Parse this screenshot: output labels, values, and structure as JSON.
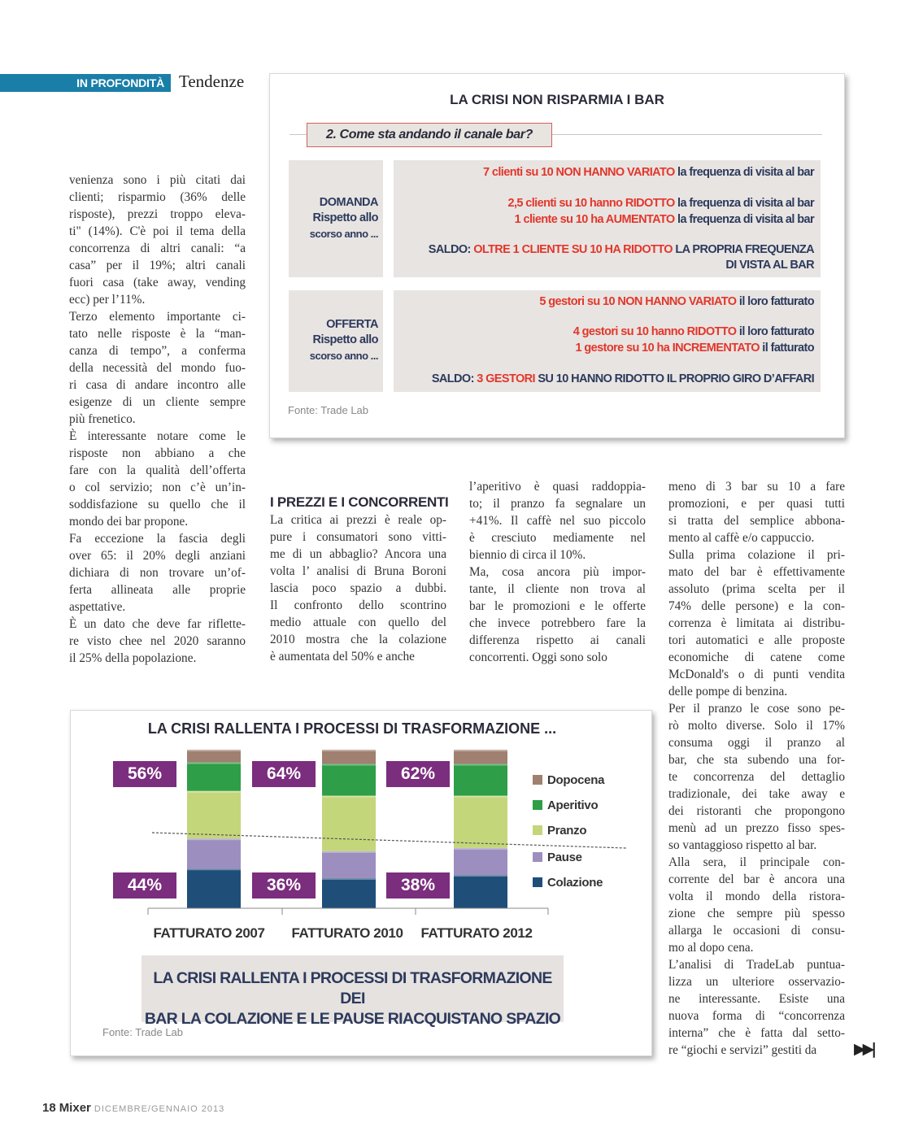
{
  "header": {
    "section_tag": "IN PROFONDITÀ",
    "section_name": "Tendenze"
  },
  "columns": [
    {
      "paragraphs": [
        [
          "venienza sono i più citati dai",
          "clienti; risparmio (36% delle",
          "risposte), prezzi troppo eleva-",
          "ti\" (14%).  C'è poi il tema della",
          "concorrenza di altri canali: “a",
          "casa” per il 19%; altri canali",
          "fuori casa (take away, vending",
          "ecc) per l’11%."
        ],
        [
          "Terzo elemento importante ci-",
          "tato nelle risposte è la “man-",
          "canza di tempo”, a conferma",
          "della necessità del mondo fuo-",
          "ri casa di andare incontro alle",
          "esigenze di un cliente sempre",
          "più frenetico."
        ],
        [
          "È interessante notare come le",
          "risposte non abbiano a che",
          "fare con la qualità dell’offerta",
          "o col servizio; non c’è un’in-",
          "soddisfazione su quello che il",
          "mondo dei bar propone."
        ],
        [
          "Fa eccezione la fascia degli",
          "over 65: il 20% degli anziani",
          "dichiara di non trovare un’of-",
          "ferta allineata alle proprie",
          "aspettative."
        ],
        [
          "È un dato che deve far riflette-",
          "re visto chee nel 2020 saranno",
          "il 25% della popolazione."
        ]
      ]
    },
    {
      "heading": "I PREZZI E I CONCORRENTI",
      "paragraphs": [
        [
          "La critica ai prezzi è reale op-",
          "pure i consumatori sono vitti-",
          "me di un abbaglio? Ancora una",
          "volta l’ analisi di Bruna Boroni",
          "lascia poco spazio a dubbi.",
          "Il confronto dello scontrino",
          "medio attuale con quello del",
          "2010 mostra che la colazione",
          "è aumentata del 50% e anche"
        ]
      ]
    },
    {
      "paragraphs": [
        [
          "l’aperitivo è quasi raddoppia-",
          "to; il pranzo fa segnalare un",
          "+41%. Il caffè nel suo piccolo",
          "è cresciuto mediamente nel",
          "biennio di circa il 10%."
        ],
        [
          "Ma, cosa ancora più impor-",
          "tante, il cliente non trova al",
          "bar le promozioni e le offerte",
          "che invece potrebbero fare la",
          "differenza rispetto ai canali",
          "concorrenti. Oggi sono solo"
        ]
      ]
    },
    {
      "paragraphs": [
        [
          "meno di 3 bar su 10 a fare",
          "promozioni, e per quasi tutti",
          "si tratta del semplice abbona-",
          "mento al caffè e/o cappuccio."
        ],
        [
          "Sulla prima colazione il pri-",
          "mato del bar è effettivamente",
          "assoluto (prima scelta per il",
          "74% delle persone) e la con-",
          "correnza è limitata ai distribu-",
          "tori automatici e alle proposte",
          "economiche di catene come",
          "McDonald's o di punti vendita",
          "delle pompe di benzina."
        ],
        [
          "Per il pranzo le cose sono pe-",
          "rò molto diverse. Solo il 17%",
          "consuma oggi il pranzo al",
          "bar, che sta subendo una for-",
          "te concorrenza del dettaglio",
          "tradizionale, dei take away e",
          "dei ristoranti che propongono",
          "menù ad un prezzo fisso spes-",
          "so vantaggioso rispetto al bar."
        ],
        [
          "Alla sera, il principale con-",
          "corrente del bar è ancora una",
          "volta il mondo della ristora-",
          "zione che sempre più spesso",
          "allarga le occasioni di consu-",
          "mo al dopo cena."
        ],
        [
          "L’analisi di TradeLab puntua-",
          "lizza un ulteriore osservazio-",
          "ne interessante. Esiste una",
          "nuova forma di “concorrenza",
          "interna” che è fatta dal setto-",
          "re “giochi e servizi” gestiti da"
        ]
      ]
    }
  ],
  "infographic": {
    "title": "LA CRISI NON RISPARMIA I BAR",
    "question": "2. Come sta andando il canale bar?",
    "rows": [
      {
        "label": [
          "DOMANDA",
          "Rispetto allo",
          "scorso anno ..."
        ],
        "lines": [
          {
            "red": "7 clienti su 10 NON HANNO VARIATO",
            "navy": " la frequenza di visita al bar"
          },
          {
            "red": "2,5 clienti su 10 hanno RIDOTTO",
            "navy": " la frequenza di visita al bar"
          },
          {
            "red": "1 cliente su 10 ha AUMENTATO",
            "navy": " la frequenza di visita al bar"
          }
        ],
        "saldo_prefix": "SALDO:  ",
        "saldo_red": "OLTRE 1 CLIENTE SU 10 HA RIDOTTO",
        "saldo_navy": " LA PROPRIA FREQUENZA",
        "saldo_navy2": "DI VISTA AL BAR"
      },
      {
        "label": [
          "OFFERTA",
          "Rispetto allo",
          "scorso anno ..."
        ],
        "lines": [
          {
            "red": "5 gestori su 10 NON HANNO VARIATO",
            "navy": " il loro fatturato"
          },
          {
            "red": "4 gestori su 10 hanno RIDOTTO",
            "navy": " il loro fatturato"
          },
          {
            "red": "1 gestore su 10 ha INCREMENTATO",
            "navy": " il fatturato"
          }
        ],
        "saldo_prefix": "SALDO:  ",
        "saldo_red": "3 GESTORI",
        "saldo_navy": " SU 10 HANNO RIDOTTO IL PROPRIO GIRO D’AFFARI"
      }
    ],
    "source": "Fonte: Trade Lab",
    "colors": {
      "red": "#e2372b",
      "navy": "#2c3a5c"
    }
  },
  "chart_data": {
    "type": "bar",
    "stacked": true,
    "title": "LA CRISI RALLENTA I PROCESSI DI TRASFORMAZIONE ...",
    "categories": [
      "FATTURATO 2007",
      "FATTURATO 2010",
      "FATTURATO 2012"
    ],
    "series": [
      {
        "name": "Colazione",
        "color": "#1f4e79",
        "values": [
          25,
          19,
          21
        ]
      },
      {
        "name": "Pause",
        "color": "#9c8fc0",
        "values": [
          19,
          17,
          17
        ]
      },
      {
        "name": "Pranzo",
        "color": "#c4d67a",
        "values": [
          30,
          35,
          33
        ]
      },
      {
        "name": "Aperitivo",
        "color": "#2e9e48",
        "values": [
          18,
          20,
          20
        ]
      },
      {
        "name": "Dopocena",
        "color": "#a08070",
        "values": [
          8,
          9,
          9
        ]
      }
    ],
    "upper_labels": [
      "56%",
      "64%",
      "62%"
    ],
    "lower_labels": [
      "44%",
      "36%",
      "38%"
    ],
    "label_color": "#7b2d7e",
    "legend_position": "right",
    "ylim": [
      0,
      100
    ],
    "grid": false,
    "caption": [
      "LA CRISI RALLENTA I PROCESSI DI TRASFORMAZIONE DEI",
      "BAR LA COLAZIONE E LE PAUSE RIACQUISTANO SPAZIO"
    ],
    "source": "Fonte: Trade Lab"
  },
  "footer": {
    "page": "18",
    "magazine": "Mixer",
    "issue": "DICEMBRE/GENNAIO 2013",
    "next_icon": "fast-forward-icon"
  }
}
